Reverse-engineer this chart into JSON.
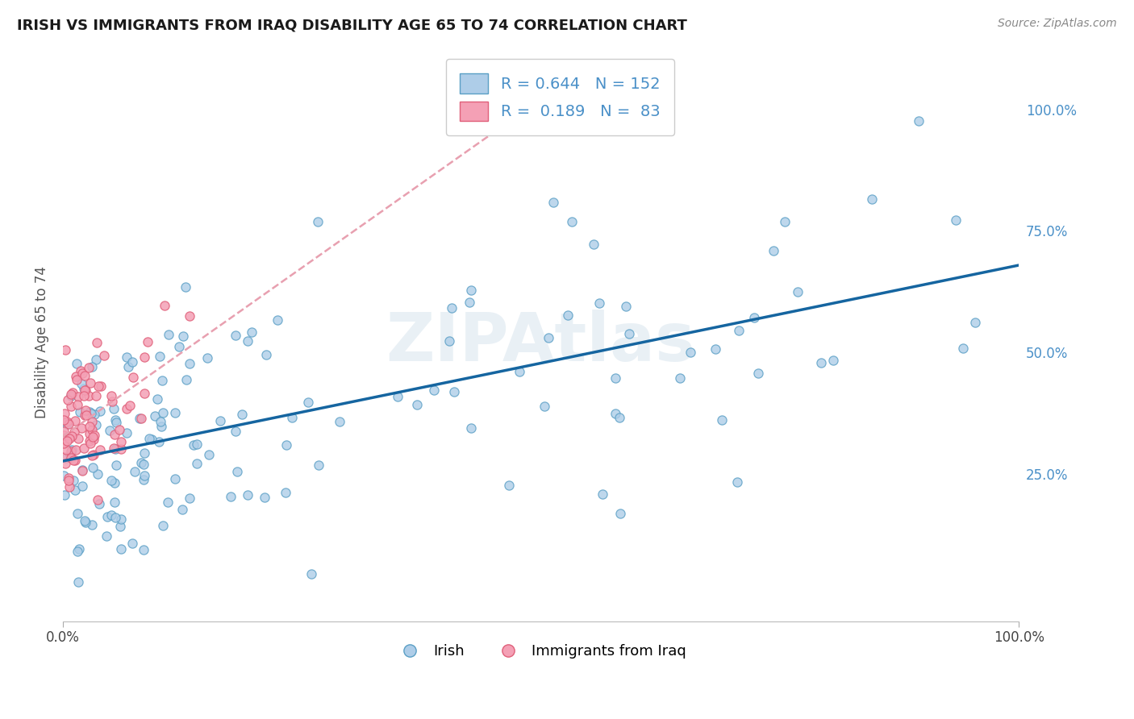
{
  "title": "IRISH VS IMMIGRANTS FROM IRAQ DISABILITY AGE 65 TO 74 CORRELATION CHART",
  "source": "Source: ZipAtlas.com",
  "ylabel": "Disability Age 65 to 74",
  "xlim": [
    0.0,
    1.0
  ],
  "ylim": [
    -0.05,
    1.1
  ],
  "y_tick_positions": [
    0.25,
    0.5,
    0.75,
    1.0
  ],
  "y_tick_labels": [
    "25.0%",
    "50.0%",
    "75.0%",
    "100.0%"
  ],
  "irish_color": "#aecde8",
  "irish_edge_color": "#5a9fc5",
  "iraq_color": "#f4a0b5",
  "iraq_edge_color": "#e0607a",
  "irish_line_color": "#1565a0",
  "iraq_trend_color": "#e8a0b0",
  "R_irish": 0.644,
  "N_irish": 152,
  "R_iraq": 0.189,
  "N_iraq": 83,
  "background_color": "#ffffff",
  "grid_color": "#d0d0d0",
  "axis_label_color": "#4a90c8",
  "legend_text_color": "#4a90c8",
  "legend_label_irish": "Irish",
  "legend_label_iraq": "Immigrants from Iraq",
  "title_fontsize": 13,
  "watermark_text": "ZIPAtlas"
}
